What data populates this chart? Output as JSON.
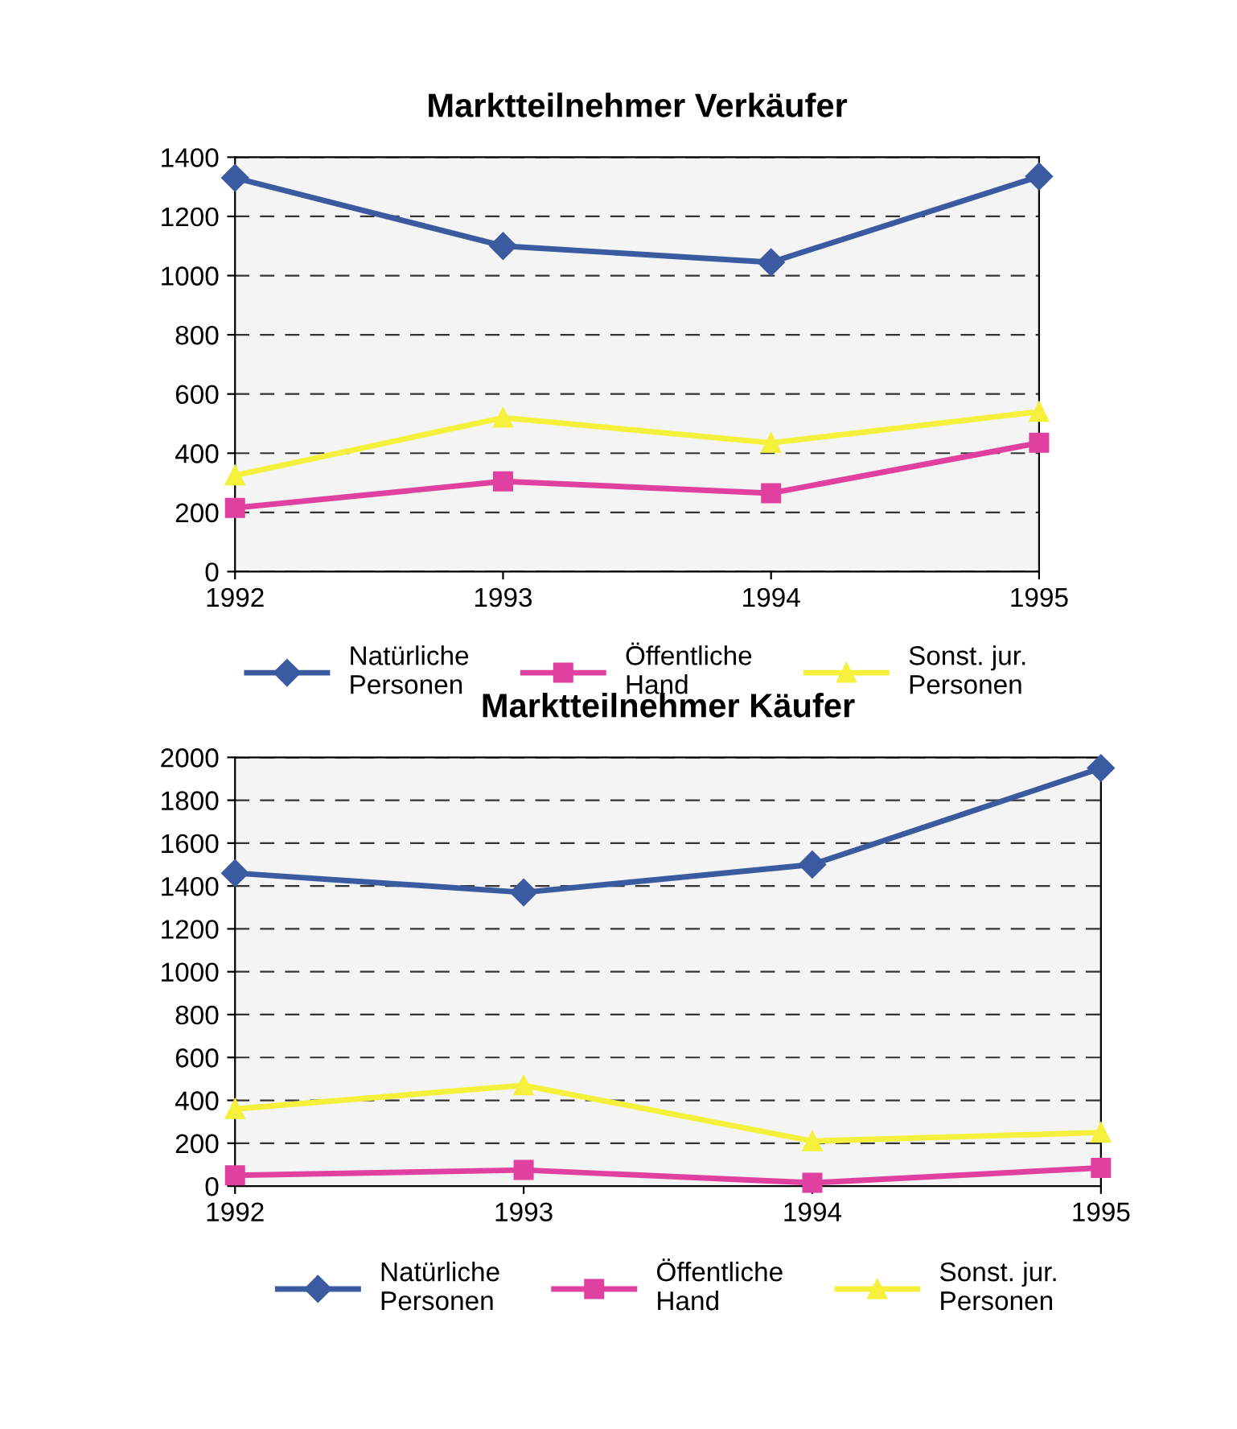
{
  "chart_data": [
    {
      "type": "line",
      "title": "Marktteilnehmer Verkäufer",
      "categories": [
        "1992",
        "1993",
        "1994",
        "1995"
      ],
      "ylim": [
        0,
        1400
      ],
      "yticks": [
        0,
        200,
        400,
        600,
        800,
        1000,
        1200,
        1400
      ],
      "grid": "y",
      "legend": "bottom",
      "series": [
        {
          "name": "Natürliche\nPersonen",
          "color": "#3a5ba0",
          "marker": "diamond",
          "values": [
            1330,
            1100,
            1045,
            1335
          ]
        },
        {
          "name": "Öffentliche\nHand",
          "color": "#e040a0",
          "marker": "square",
          "values": [
            215,
            305,
            265,
            435
          ]
        },
        {
          "name": "Sonst. jur.\nPersonen",
          "color": "#f5f03c",
          "marker": "triangle",
          "values": [
            325,
            520,
            435,
            540
          ]
        }
      ]
    },
    {
      "type": "line",
      "title": "Marktteilnehmer Käufer",
      "categories": [
        "1992",
        "1993",
        "1994",
        "1995"
      ],
      "ylim": [
        0,
        2000
      ],
      "yticks": [
        0,
        200,
        400,
        600,
        800,
        1000,
        1200,
        1400,
        1600,
        1800,
        2000
      ],
      "grid": "y",
      "legend": "bottom",
      "series": [
        {
          "name": "Natürliche\nPersonen",
          "color": "#3a5ba0",
          "marker": "diamond",
          "values": [
            1460,
            1370,
            1500,
            1950
          ]
        },
        {
          "name": "Öffentliche\nHand",
          "color": "#e040a0",
          "marker": "square",
          "values": [
            50,
            75,
            15,
            85
          ]
        },
        {
          "name": "Sonst. jur.\nPersonen",
          "color": "#f5f03c",
          "marker": "triangle",
          "values": [
            360,
            470,
            210,
            250
          ]
        }
      ]
    }
  ]
}
